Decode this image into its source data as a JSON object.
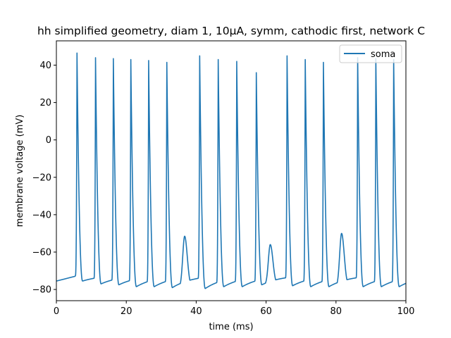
{
  "chart_data": {
    "type": "line",
    "title": "hh simplified geometry, diam 1, 10μA, symm, cathodic first, network C",
    "xlabel": "time (ms)",
    "ylabel": "membrane voltage (mV)",
    "xlim": [
      0,
      100
    ],
    "ylim": [
      -86,
      53
    ],
    "xticks": [
      0,
      20,
      40,
      60,
      80,
      100
    ],
    "yticks": [
      -80,
      -60,
      -40,
      -20,
      0,
      20,
      40
    ],
    "grid": false,
    "legend_position": "top-right",
    "series": [
      {
        "name": "soma",
        "color": "#1f77b4",
        "baseline_start": -75.5,
        "spikes": [
          {
            "t": 5.9,
            "peak": 46.5,
            "trough": -75.5
          },
          {
            "t": 11.2,
            "peak": 44.0,
            "trough": -77.0
          },
          {
            "t": 16.3,
            "peak": 43.5,
            "trough": -77.5
          },
          {
            "t": 21.3,
            "peak": 43.0,
            "trough": -78.5
          },
          {
            "t": 26.4,
            "peak": 42.5,
            "trough": -78.5
          },
          {
            "t": 31.6,
            "peak": 41.5,
            "trough": -79.0
          },
          {
            "t": 41.0,
            "peak": 45.0,
            "trough": -79.5
          },
          {
            "t": 46.3,
            "peak": 43.0,
            "trough": -78.5
          },
          {
            "t": 51.6,
            "peak": 42.0,
            "trough": -78.5
          },
          {
            "t": 57.2,
            "peak": 36.0,
            "trough": -77.5
          },
          {
            "t": 66.0,
            "peak": 45.0,
            "trough": -78.0
          },
          {
            "t": 71.2,
            "peak": 43.0,
            "trough": -78.5
          },
          {
            "t": 76.4,
            "peak": 41.5,
            "trough": -78.5
          },
          {
            "t": 86.2,
            "peak": 44.0,
            "trough": -78.5
          },
          {
            "t": 91.4,
            "peak": 43.5,
            "trough": -78.5
          },
          {
            "t": 96.5,
            "peak": 43.0,
            "trough": -78.5
          }
        ],
        "subthreshold_bumps": [
          {
            "t": 36.7,
            "peak": -51.5
          },
          {
            "t": 61.2,
            "peak": -56.0
          },
          {
            "t": 81.6,
            "peak": -50.0
          }
        ]
      }
    ]
  }
}
